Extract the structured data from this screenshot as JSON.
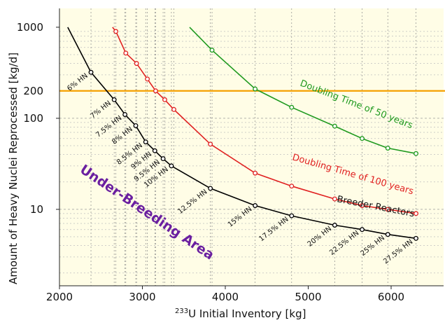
{
  "chart_data": {
    "type": "line",
    "xlabel_sup": "233",
    "xlabel_main": "U Initial Inventory [kg]",
    "ylabel": "Amount of Heavy Nuclei Reprocessed  [kg/d]",
    "y_scale": "log",
    "xlim": [
      2000,
      6400
    ],
    "ylim": [
      1.5,
      1000
    ],
    "x_ticks": [
      2000,
      3000,
      4000,
      5000,
      6000
    ],
    "y_ticks": [
      10,
      100,
      1000
    ],
    "grid": "vertical dotted lines at data points, horizontal minor log lines",
    "background_fill": "#fffde6",
    "reference_line": {
      "value": 200,
      "label": "200",
      "color": "#f5a000"
    },
    "series": [
      {
        "name": "Breeder Reactors",
        "color": "#000000",
        "points": [
          [
            2100,
            1000
          ],
          [
            2380,
            320
          ],
          [
            2660,
            160
          ],
          [
            2790,
            110
          ],
          [
            2920,
            83
          ],
          [
            3040,
            55
          ],
          [
            3150,
            44
          ],
          [
            3250,
            36
          ],
          [
            3350,
            30
          ],
          [
            3820,
            17
          ],
          [
            4360,
            11
          ],
          [
            4800,
            8.5
          ],
          [
            5320,
            6.7
          ],
          [
            5650,
            6.0
          ],
          [
            5960,
            5.3
          ],
          [
            6300,
            4.8
          ]
        ],
        "point_labels": [
          "",
          "6% HN",
          "7% HN",
          "7.5% HN",
          "8% HN",
          "8.5% HN",
          "9% HN",
          "9.5% HN",
          "10% HN",
          "12.5% HN",
          "15% HN",
          "17.5% HN",
          "20% HN",
          "22.5% HN",
          "25% HN",
          "27.5% HN"
        ]
      },
      {
        "name": "Doubling Time of 100 years",
        "color": "#e02020",
        "points": [
          [
            2640,
            1000
          ],
          [
            2680,
            900
          ],
          [
            2800,
            520
          ],
          [
            2930,
            400
          ],
          [
            3060,
            270
          ],
          [
            3160,
            200
          ],
          [
            3270,
            160
          ],
          [
            3380,
            125
          ],
          [
            3820,
            52
          ],
          [
            4360,
            25
          ],
          [
            4800,
            18
          ],
          [
            5320,
            13
          ],
          [
            5650,
            11
          ],
          [
            5960,
            10
          ],
          [
            6300,
            9
          ]
        ]
      },
      {
        "name": "Doubling Time of 50 years",
        "color": "#1f9a1f",
        "points": [
          [
            3570,
            1000
          ],
          [
            3840,
            560
          ],
          [
            4360,
            210
          ],
          [
            4800,
            132
          ],
          [
            5320,
            82
          ],
          [
            5650,
            60
          ],
          [
            5960,
            47
          ],
          [
            6300,
            41
          ]
        ]
      }
    ],
    "annotations": [
      "Doubling Time of 50 years",
      "Doubling Time of 100 years",
      "Breeder Reactors",
      "Under-Breeding Area"
    ],
    "region_label": "Under-Breeding Area"
  }
}
